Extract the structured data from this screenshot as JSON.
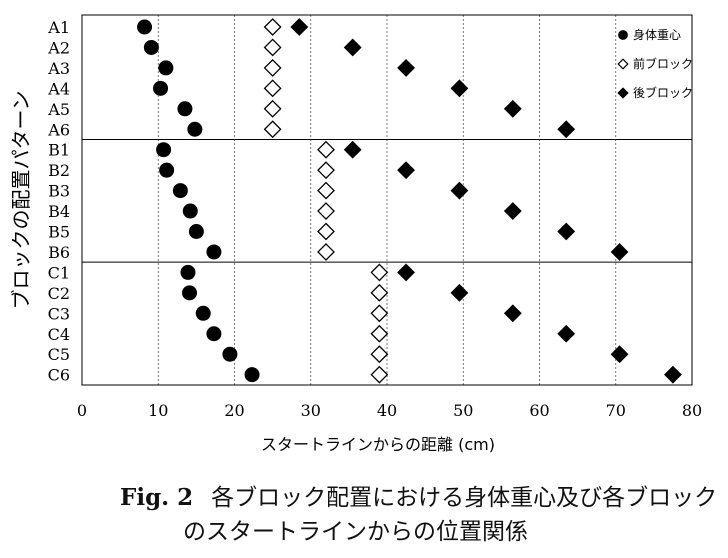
{
  "chart_data": {
    "type": "scatter",
    "ylabel": "ブロックの配置パターン",
    "xlabel": "スタートラインからの距離 (cm)",
    "xlim": [
      0,
      80
    ],
    "xticks": [
      "0",
      "10",
      "20",
      "30",
      "40",
      "50",
      "60",
      "70",
      "80"
    ],
    "categories": [
      "A1",
      "A2",
      "A3",
      "A4",
      "A5",
      "A6",
      "B1",
      "B2",
      "B3",
      "B4",
      "B5",
      "B6",
      "C1",
      "C2",
      "C3",
      "C4",
      "C5",
      "C6"
    ],
    "group_separators_after": [
      "A6",
      "B6"
    ],
    "grid": "vertical dashed",
    "legend": {
      "position": "top-right"
    },
    "series": [
      {
        "name": "身体重心",
        "marker": "filled-circle",
        "values": [
          8.2,
          9.1,
          11.0,
          10.3,
          13.5,
          14.8,
          10.7,
          11.1,
          12.9,
          14.2,
          15.0,
          17.3,
          13.9,
          14.1,
          15.9,
          17.3,
          19.4,
          22.3
        ]
      },
      {
        "name": "前ブロック",
        "marker": "open-diamond",
        "values": [
          25,
          25,
          25,
          25,
          25,
          25,
          32,
          32,
          32,
          32,
          32,
          32,
          39,
          39,
          39,
          39,
          39,
          39
        ]
      },
      {
        "name": "後ブロック",
        "marker": "filled-diamond",
        "values": [
          28.5,
          35.5,
          42.5,
          49.5,
          56.5,
          63.5,
          35.5,
          42.5,
          49.5,
          56.5,
          63.5,
          70.5,
          42.5,
          49.5,
          56.5,
          63.5,
          70.5,
          77.5
        ]
      }
    ]
  },
  "caption": {
    "label": "Fig. 2",
    "line1": "各ブロック配置における身体重心及び各ブロック",
    "line2": "のスタートラインからの位置関係"
  },
  "colors": {
    "marker": "#000000",
    "grid": "#555555",
    "frame": "#000000"
  }
}
